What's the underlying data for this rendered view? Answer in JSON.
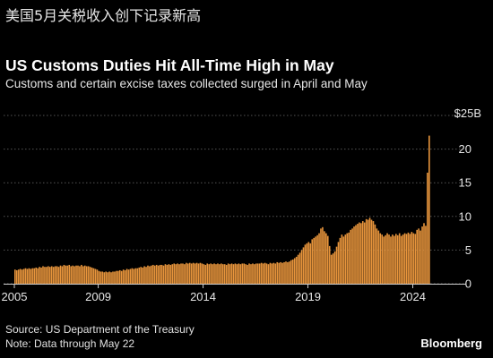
{
  "header": {
    "cn_title": "美国5月关税收入创下记录新高",
    "title": "US Customs Duties Hit All-Time High in May",
    "subtitle": "Customs and certain excise taxes collected surged in April and May"
  },
  "footer": {
    "source": "Source: US Department of the Treasury",
    "note": "Note: Data through May 22",
    "brand": "Bloomberg"
  },
  "colors": {
    "background": "#000000",
    "bar": "#e8953c",
    "grid": "#555555",
    "text": "#ffffff"
  },
  "chart_data": {
    "type": "bar",
    "title": "US Customs Duties Hit All-Time High in May",
    "subtitle": "Customs and certain excise taxes collected surged in April and May",
    "unit_label": "$25B",
    "y_ticks": [
      0,
      5,
      10,
      15,
      20
    ],
    "ylim": [
      0,
      25
    ],
    "x_ticks": [
      "2005",
      "2009",
      "2014",
      "2019",
      "2024"
    ],
    "grid": "horizontal dotted",
    "x_start": "2005-01",
    "frequency": "monthly",
    "values": [
      2.1,
      2.0,
      2.1,
      2.2,
      2.1,
      2.2,
      2.3,
      2.2,
      2.3,
      2.2,
      2.3,
      2.3,
      2.4,
      2.3,
      2.5,
      2.4,
      2.6,
      2.5,
      2.5,
      2.6,
      2.5,
      2.6,
      2.5,
      2.6,
      2.6,
      2.5,
      2.7,
      2.6,
      2.8,
      2.7,
      2.7,
      2.8,
      2.6,
      2.7,
      2.6,
      2.7,
      2.7,
      2.6,
      2.8,
      2.6,
      2.7,
      2.6,
      2.6,
      2.5,
      2.4,
      2.3,
      2.2,
      2.1,
      1.9,
      1.8,
      1.8,
      1.7,
      1.8,
      1.7,
      1.8,
      1.7,
      1.8,
      1.8,
      1.9,
      1.9,
      2.0,
      1.9,
      2.1,
      2.0,
      2.2,
      2.1,
      2.2,
      2.3,
      2.2,
      2.3,
      2.3,
      2.4,
      2.5,
      2.4,
      2.6,
      2.5,
      2.7,
      2.6,
      2.7,
      2.8,
      2.7,
      2.8,
      2.7,
      2.8,
      2.8,
      2.7,
      2.9,
      2.8,
      2.9,
      2.8,
      2.9,
      3.0,
      2.9,
      3.0,
      2.9,
      3.0,
      3.0,
      2.9,
      3.1,
      3.0,
      3.1,
      3.0,
      3.1,
      3.0,
      3.1,
      3.0,
      3.1,
      3.0,
      2.9,
      2.8,
      3.0,
      2.9,
      3.0,
      2.9,
      3.0,
      2.9,
      3.0,
      2.9,
      3.0,
      2.9,
      2.9,
      2.8,
      3.0,
      2.9,
      3.0,
      2.9,
      3.0,
      2.9,
      3.0,
      2.9,
      3.0,
      3.0,
      2.9,
      2.8,
      3.0,
      2.9,
      3.0,
      2.9,
      3.0,
      3.0,
      3.0,
      3.1,
      3.0,
      3.1,
      3.0,
      2.9,
      3.1,
      3.0,
      3.1,
      3.0,
      3.2,
      3.1,
      3.2,
      3.1,
      3.2,
      3.3,
      3.2,
      3.3,
      3.5,
      3.6,
      3.8,
      4.0,
      4.3,
      4.6,
      5.0,
      5.4,
      5.8,
      6.0,
      6.2,
      6.0,
      6.6,
      6.8,
      7.0,
      7.2,
      7.5,
      8.2,
      8.4,
      7.8,
      7.5,
      7.1,
      5.6,
      4.3,
      4.5,
      4.8,
      5.5,
      6.2,
      6.8,
      7.3,
      7.0,
      7.3,
      7.5,
      7.6,
      8.0,
      8.2,
      8.5,
      8.7,
      8.9,
      9.1,
      9.0,
      9.3,
      9.1,
      9.6,
      9.5,
      9.8,
      9.5,
      9.3,
      8.8,
      8.2,
      7.9,
      7.5,
      7.3,
      7.0,
      7.2,
      7.5,
      7.3,
      7.0,
      7.3,
      7.1,
      7.4,
      7.2,
      7.5,
      7.1,
      7.3,
      7.5,
      7.4,
      7.6,
      7.4,
      7.7,
      7.5,
      7.4,
      8.0,
      8.2,
      7.9,
      8.5,
      9.0,
      8.6,
      16.5,
      22.0
    ],
    "value_unit": "$B"
  }
}
